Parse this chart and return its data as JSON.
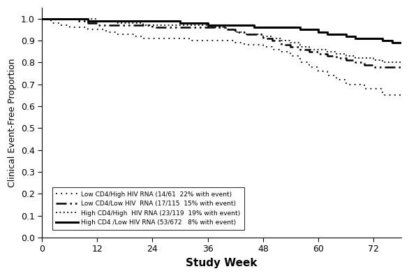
{
  "xlabel": "Study Week",
  "ylabel": "Clinical Event-Free Proportion",
  "xlim": [
    0,
    78
  ],
  "ylim": [
    0.0,
    1.05
  ],
  "xticks": [
    0,
    12,
    24,
    36,
    48,
    60,
    72
  ],
  "yticks": [
    0.0,
    0.1,
    0.2,
    0.3,
    0.4,
    0.5,
    0.6,
    0.7,
    0.8,
    0.9,
    1.0
  ],
  "curves": [
    {
      "label": "Low CD4/High HIV RNA (14/61  22% with event)",
      "x": [
        0,
        2,
        4,
        6,
        8,
        10,
        12,
        14,
        16,
        18,
        20,
        22,
        24,
        26,
        28,
        30,
        32,
        34,
        36,
        38,
        40,
        42,
        44,
        46,
        48,
        50,
        52,
        54,
        56,
        58,
        60,
        62,
        64,
        66,
        68,
        70,
        72,
        74,
        76,
        78
      ],
      "y": [
        1.0,
        0.98,
        0.97,
        0.96,
        0.96,
        0.95,
        0.95,
        0.94,
        0.93,
        0.93,
        0.92,
        0.91,
        0.91,
        0.91,
        0.91,
        0.91,
        0.9,
        0.9,
        0.9,
        0.9,
        0.9,
        0.89,
        0.88,
        0.88,
        0.87,
        0.86,
        0.85,
        0.83,
        0.8,
        0.78,
        0.76,
        0.74,
        0.72,
        0.7,
        0.7,
        0.68,
        0.68,
        0.65,
        0.65,
        0.65
      ]
    },
    {
      "label": "Low CD4/Low HIV  RNA (17/115  15% with event)",
      "x": [
        0,
        2,
        4,
        6,
        8,
        10,
        12,
        14,
        16,
        18,
        20,
        22,
        24,
        26,
        28,
        30,
        32,
        34,
        36,
        38,
        40,
        42,
        44,
        46,
        48,
        50,
        52,
        54,
        56,
        58,
        60,
        62,
        64,
        66,
        68,
        70,
        72,
        74,
        76,
        78
      ],
      "y": [
        1.0,
        1.0,
        1.0,
        1.0,
        0.99,
        0.98,
        0.97,
        0.97,
        0.97,
        0.97,
        0.97,
        0.97,
        0.96,
        0.96,
        0.96,
        0.96,
        0.96,
        0.96,
        0.96,
        0.96,
        0.95,
        0.94,
        0.93,
        0.93,
        0.91,
        0.9,
        0.88,
        0.87,
        0.86,
        0.85,
        0.84,
        0.83,
        0.82,
        0.81,
        0.8,
        0.79,
        0.78,
        0.78,
        0.78,
        0.78
      ]
    },
    {
      "label": "High CD4/High  HIV RNA (23/119  19% with event)",
      "x": [
        0,
        2,
        4,
        6,
        8,
        10,
        12,
        14,
        16,
        18,
        20,
        22,
        24,
        26,
        28,
        30,
        32,
        34,
        36,
        38,
        40,
        42,
        44,
        46,
        48,
        50,
        52,
        54,
        56,
        58,
        60,
        62,
        64,
        66,
        68,
        70,
        72,
        74,
        76,
        78
      ],
      "y": [
        1.0,
        1.0,
        1.0,
        1.0,
        1.0,
        1.0,
        0.99,
        0.99,
        0.98,
        0.98,
        0.98,
        0.97,
        0.97,
        0.97,
        0.97,
        0.97,
        0.97,
        0.97,
        0.96,
        0.96,
        0.95,
        0.94,
        0.93,
        0.93,
        0.92,
        0.91,
        0.9,
        0.89,
        0.87,
        0.86,
        0.86,
        0.85,
        0.84,
        0.83,
        0.82,
        0.82,
        0.81,
        0.8,
        0.8,
        0.8
      ]
    },
    {
      "label": "High CD4 /Low HIV RNA (53/672   8% with event)",
      "x": [
        0,
        2,
        4,
        6,
        8,
        10,
        12,
        14,
        16,
        18,
        20,
        22,
        24,
        26,
        28,
        30,
        32,
        34,
        36,
        38,
        40,
        42,
        44,
        46,
        48,
        50,
        52,
        54,
        56,
        58,
        60,
        62,
        64,
        66,
        68,
        70,
        72,
        74,
        76,
        78
      ],
      "y": [
        1.0,
        1.0,
        1.0,
        1.0,
        1.0,
        0.99,
        0.99,
        0.99,
        0.99,
        0.99,
        0.99,
        0.99,
        0.99,
        0.99,
        0.99,
        0.98,
        0.98,
        0.98,
        0.97,
        0.97,
        0.97,
        0.97,
        0.97,
        0.96,
        0.96,
        0.96,
        0.96,
        0.96,
        0.95,
        0.95,
        0.94,
        0.93,
        0.93,
        0.92,
        0.91,
        0.91,
        0.91,
        0.9,
        0.89,
        0.89
      ]
    }
  ],
  "legend_labels": [
    "Low CD4/High HIV RNA (14/61  22% with event)",
    "Low CD4/Low HIV  RNA (17/115  15% with event)",
    "High CD4/High  HIV RNA (23/119  19% with event)",
    "High CD4 /Low HIV RNA (53/672   8% with event)"
  ],
  "background_color": "#ffffff",
  "figsize": [
    5.86,
    3.95
  ],
  "dpi": 100
}
